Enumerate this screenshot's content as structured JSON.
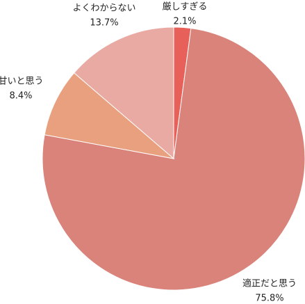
{
  "chart_data": {
    "type": "pie",
    "categories": [
      "厳しすぎる",
      "適正だと思う",
      "甘いと思う",
      "よくわからない"
    ],
    "values": [
      2.1,
      75.8,
      8.4,
      13.7
    ],
    "value_labels": [
      "2.1%",
      "75.8%",
      "8.4%",
      "13.7%"
    ],
    "colors": [
      "#e8605a",
      "#d9837b",
      "#e8a07e",
      "#e8aaa2"
    ]
  }
}
